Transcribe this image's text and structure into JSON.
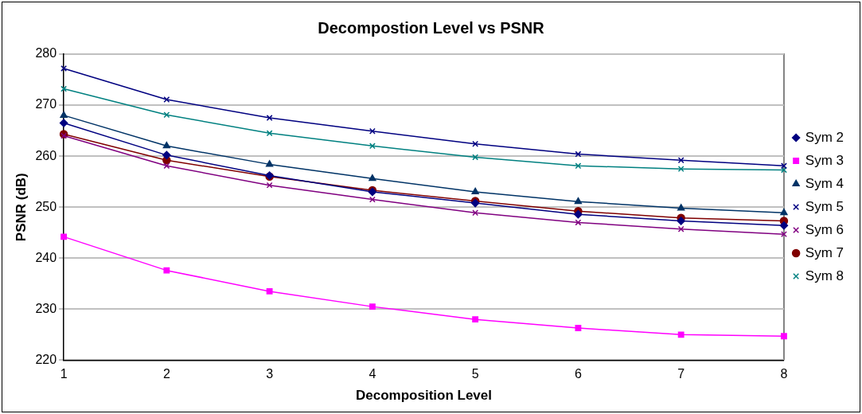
{
  "chart_data": {
    "type": "line",
    "title": "Decompostion Level vs PSNR",
    "xlabel": "Decomposition Level",
    "ylabel": "PSNR (dB)",
    "categories": [
      "1",
      "2",
      "3",
      "4",
      "5",
      "6",
      "7",
      "8"
    ],
    "ylim": [
      220,
      280
    ],
    "yticks": [
      220,
      230,
      240,
      250,
      260,
      270,
      280
    ],
    "grid": "y",
    "legend": "right",
    "line_style": "solid",
    "series": [
      {
        "name": "Sym 2",
        "color": "#000080",
        "marker": "diamond",
        "values": [
          266.5,
          260.2,
          256.2,
          253,
          250.8,
          248.6,
          247.3,
          246.4
        ]
      },
      {
        "name": "Sym 3",
        "color": "#ff00ff",
        "marker": "square",
        "values": [
          244.2,
          237.6,
          233.5,
          230.5,
          228,
          226.3,
          225,
          224.7
        ]
      },
      {
        "name": "Sym 4",
        "color": "#003366",
        "marker": "triangle",
        "values": [
          268,
          262,
          258.4,
          255.6,
          253,
          251.1,
          249.8,
          248.9
        ]
      },
      {
        "name": "Sym 5",
        "color": "#000080",
        "marker": "cross",
        "values": [
          277.2,
          271.1,
          267.5,
          264.9,
          262.4,
          260.4,
          259.2,
          258.1
        ]
      },
      {
        "name": "Sym 6",
        "color": "#800080",
        "marker": "cross",
        "values": [
          264,
          258.1,
          254.3,
          251.5,
          248.9,
          247,
          245.7,
          244.7
        ]
      },
      {
        "name": "Sym 7",
        "color": "#800000",
        "marker": "circle",
        "values": [
          264.3,
          259.2,
          256,
          253.3,
          251.2,
          249.2,
          247.9,
          247.3
        ]
      },
      {
        "name": "Sym 8",
        "color": "#008080",
        "marker": "cross",
        "values": [
          273.2,
          268.1,
          264.5,
          262,
          259.8,
          258.1,
          257.5,
          257.3
        ]
      }
    ]
  }
}
